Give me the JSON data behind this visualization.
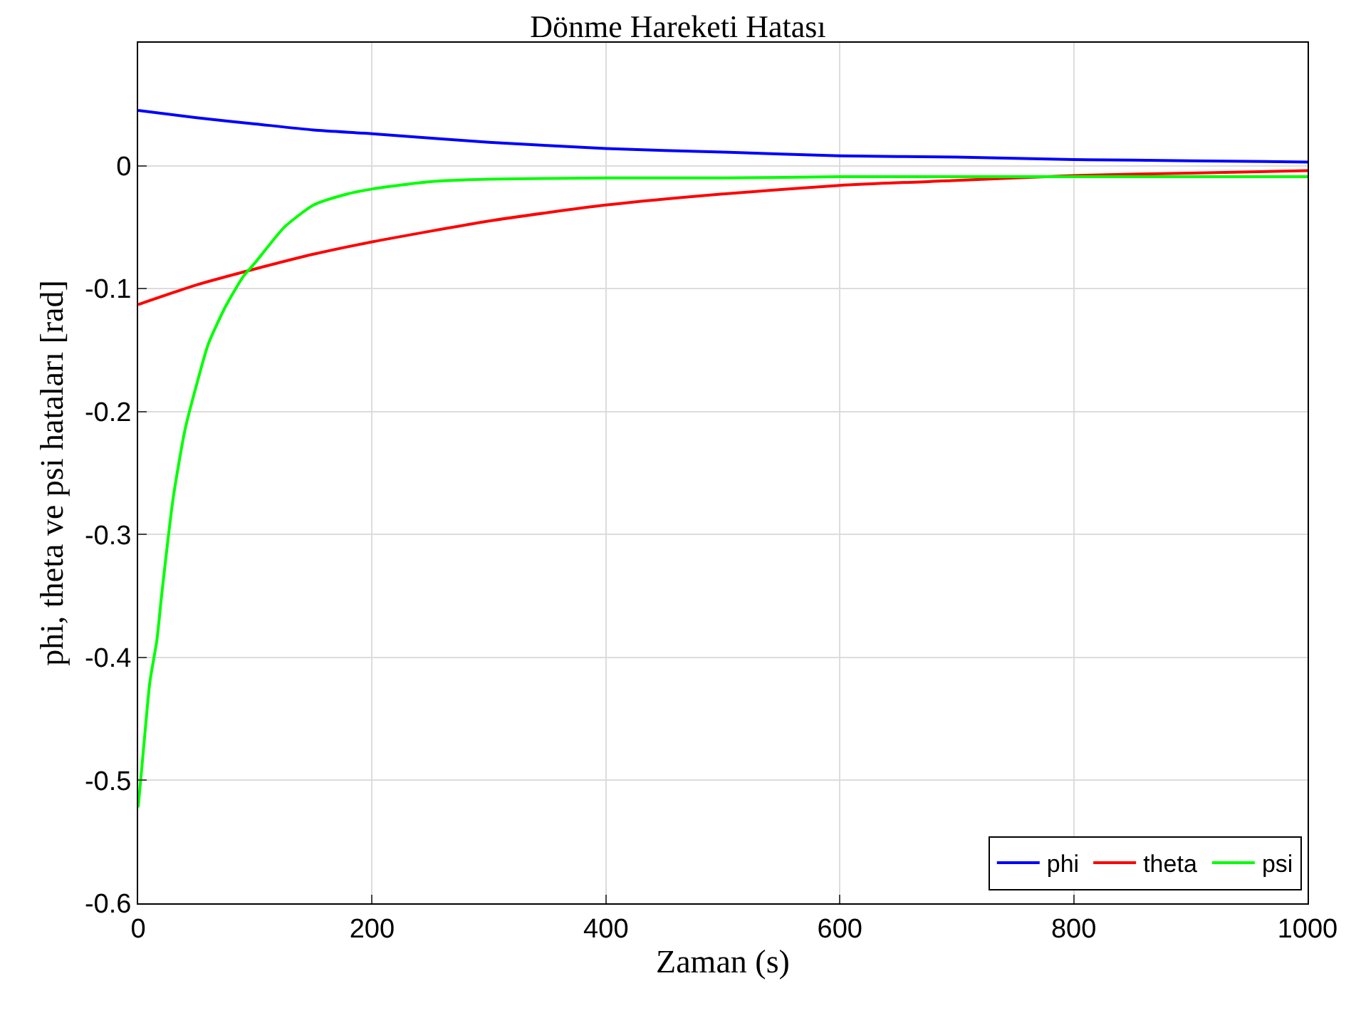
{
  "chart_data": {
    "type": "line",
    "title": "Dönme Hareketi Hatası",
    "xlabel": "Zaman (s)",
    "ylabel": "phi, theta ve psi hataları [rad]",
    "xlim": [
      0,
      1000
    ],
    "ylim": [
      -0.6,
      0.1
    ],
    "xticks": [
      0,
      200,
      400,
      600,
      800,
      1000
    ],
    "yticks": [
      0,
      -0.1,
      -0.2,
      -0.3,
      -0.4,
      -0.5,
      -0.6
    ],
    "grid": true,
    "legend": "bottom right",
    "line_style": "solid",
    "marker": "none",
    "series": [
      {
        "name": "phi",
        "color": "#0000ff",
        "x": [
          0,
          50,
          100,
          150,
          200,
          300,
          400,
          500,
          600,
          700,
          800,
          900,
          1000
        ],
        "values": [
          0.045,
          0.039,
          0.034,
          0.029,
          0.026,
          0.019,
          0.014,
          0.011,
          0.008,
          0.007,
          0.005,
          0.004,
          0.003
        ]
      },
      {
        "name": "theta",
        "color": "#ff0000",
        "x": [
          0,
          50,
          100,
          150,
          200,
          300,
          400,
          500,
          600,
          700,
          800,
          900,
          1000
        ],
        "values": [
          -0.113,
          -0.097,
          -0.084,
          -0.072,
          -0.062,
          -0.045,
          -0.032,
          -0.023,
          -0.016,
          -0.012,
          -0.008,
          -0.006,
          -0.004
        ]
      },
      {
        "name": "psi",
        "color": "#00ff00",
        "x": [
          0,
          5,
          10,
          16,
          20,
          30,
          40,
          50,
          60,
          75,
          90,
          100,
          125,
          150,
          175,
          200,
          250,
          300,
          400,
          500,
          600,
          800,
          1000
        ],
        "values": [
          -0.522,
          -0.47,
          -0.42,
          -0.386,
          -0.35,
          -0.27,
          -0.215,
          -0.178,
          -0.145,
          -0.114,
          -0.09,
          -0.079,
          -0.05,
          -0.032,
          -0.024,
          -0.019,
          -0.013,
          -0.011,
          -0.01,
          -0.01,
          -0.009,
          -0.009,
          -0.009
        ]
      }
    ]
  }
}
